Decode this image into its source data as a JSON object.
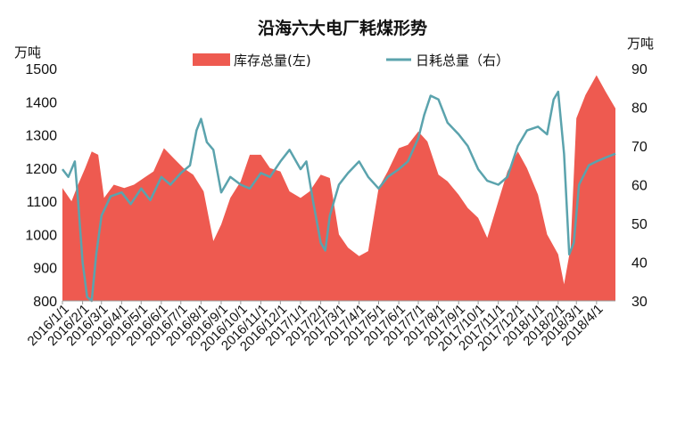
{
  "chart_data": {
    "type": "area+line",
    "title": "沿海六大电厂耗煤形势",
    "y_left_unit": "万吨",
    "y_right_unit": "万吨",
    "y_left_ticks": [
      "800",
      "900",
      "1000",
      "1100",
      "1200",
      "1300",
      "1400",
      "1500"
    ],
    "y_right_ticks": [
      "30",
      "40",
      "50",
      "60",
      "70",
      "80",
      "90"
    ],
    "ylim_left": [
      800,
      1500
    ],
    "ylim_right": [
      30,
      90
    ],
    "x_start": "2016/1/1",
    "x_end": "2018/4/30",
    "x_ticks": [
      "2016/1/1",
      "2016/2/1",
      "2016/3/1",
      "2016/4/1",
      "2016/5/1",
      "2016/6/1",
      "2016/7/1",
      "2016/8/1",
      "2016/9/1",
      "2016/10/1",
      "2016/11/1",
      "2016/12/1",
      "2017/1/1",
      "2017/2/1",
      "2017/3/1",
      "2017/4/1",
      "2017/5/1",
      "2017/6/1",
      "2017/7/1",
      "2017/8/1",
      "2017/9/1",
      "2017/10/1",
      "2017/11/1",
      "2017/12/1",
      "2018/1/1",
      "2018/2/1",
      "2018/3/1",
      "2018/4/1"
    ],
    "legend_position": "top",
    "colors": {
      "inventory": "#ee5a50",
      "daily": "#5ba3ad"
    },
    "series": [
      {
        "name": "库存总量(左)",
        "axis": "left",
        "style": "area",
        "points": [
          [
            "2016/1/1",
            1140
          ],
          [
            "2016/1/15",
            1100
          ],
          [
            "2016/1/25",
            1150
          ],
          [
            "2016/2/5",
            1200
          ],
          [
            "2016/2/15",
            1250
          ],
          [
            "2016/2/25",
            1240
          ],
          [
            "2016/3/5",
            1110
          ],
          [
            "2016/3/20",
            1150
          ],
          [
            "2016/4/5",
            1140
          ],
          [
            "2016/4/20",
            1150
          ],
          [
            "2016/5/5",
            1170
          ],
          [
            "2016/5/20",
            1190
          ],
          [
            "2016/6/5",
            1260
          ],
          [
            "2016/6/20",
            1230
          ],
          [
            "2016/7/5",
            1200
          ],
          [
            "2016/7/20",
            1180
          ],
          [
            "2016/8/5",
            1130
          ],
          [
            "2016/8/20",
            980
          ],
          [
            "2016/9/1",
            1030
          ],
          [
            "2016/9/15",
            1110
          ],
          [
            "2016/10/1",
            1160
          ],
          [
            "2016/10/15",
            1240
          ],
          [
            "2016/11/1",
            1240
          ],
          [
            "2016/11/15",
            1200
          ],
          [
            "2016/12/1",
            1190
          ],
          [
            "2016/12/15",
            1130
          ],
          [
            "2017/1/1",
            1110
          ],
          [
            "2017/1/15",
            1130
          ],
          [
            "2017/2/1",
            1180
          ],
          [
            "2017/2/15",
            1170
          ],
          [
            "2017/3/1",
            1000
          ],
          [
            "2017/3/15",
            960
          ],
          [
            "2017/4/1",
            935
          ],
          [
            "2017/4/15",
            950
          ],
          [
            "2017/5/1",
            1140
          ],
          [
            "2017/5/15",
            1190
          ],
          [
            "2017/6/1",
            1260
          ],
          [
            "2017/6/15",
            1270
          ],
          [
            "2017/7/1",
            1310
          ],
          [
            "2017/7/15",
            1280
          ],
          [
            "2017/8/1",
            1180
          ],
          [
            "2017/8/15",
            1160
          ],
          [
            "2017/9/1",
            1120
          ],
          [
            "2017/9/15",
            1080
          ],
          [
            "2017/10/1",
            1050
          ],
          [
            "2017/10/15",
            990
          ],
          [
            "2017/11/1",
            1100
          ],
          [
            "2017/11/15",
            1190
          ],
          [
            "2017/12/1",
            1250
          ],
          [
            "2017/12/15",
            1200
          ],
          [
            "2018/1/1",
            1120
          ],
          [
            "2018/1/15",
            1000
          ],
          [
            "2018/2/1",
            940
          ],
          [
            "2018/2/10",
            850
          ],
          [
            "2018/2/20",
            960
          ],
          [
            "2018/3/1",
            1350
          ],
          [
            "2018/3/15",
            1420
          ],
          [
            "2018/4/1",
            1480
          ],
          [
            "2018/4/15",
            1430
          ],
          [
            "2018/4/30",
            1380
          ]
        ]
      },
      {
        "name": "日耗总量（右）",
        "axis": "right",
        "style": "line",
        "points": [
          [
            "2016/1/1",
            64
          ],
          [
            "2016/1/10",
            62
          ],
          [
            "2016/1/20",
            66
          ],
          [
            "2016/1/25",
            56
          ],
          [
            "2016/2/1",
            40
          ],
          [
            "2016/2/8",
            31
          ],
          [
            "2016/2/15",
            30
          ],
          [
            "2016/2/22",
            42
          ],
          [
            "2016/3/1",
            52
          ],
          [
            "2016/3/15",
            57
          ],
          [
            "2016/4/1",
            58
          ],
          [
            "2016/4/15",
            55
          ],
          [
            "2016/5/1",
            59
          ],
          [
            "2016/5/15",
            56
          ],
          [
            "2016/6/1",
            62
          ],
          [
            "2016/6/15",
            60
          ],
          [
            "2016/7/1",
            63
          ],
          [
            "2016/7/15",
            65
          ],
          [
            "2016/7/25",
            74
          ],
          [
            "2016/8/1",
            77
          ],
          [
            "2016/8/10",
            71
          ],
          [
            "2016/8/20",
            69
          ],
          [
            "2016/9/1",
            58
          ],
          [
            "2016/9/15",
            62
          ],
          [
            "2016/10/1",
            60
          ],
          [
            "2016/10/15",
            59
          ],
          [
            "2016/11/1",
            63
          ],
          [
            "2016/11/15",
            62
          ],
          [
            "2016/12/1",
            66
          ],
          [
            "2016/12/15",
            69
          ],
          [
            "2017/1/1",
            64
          ],
          [
            "2017/1/10",
            66
          ],
          [
            "2017/1/20",
            56
          ],
          [
            "2017/2/1",
            45
          ],
          [
            "2017/2/8",
            43
          ],
          [
            "2017/2/15",
            52
          ],
          [
            "2017/3/1",
            60
          ],
          [
            "2017/3/15",
            63
          ],
          [
            "2017/4/1",
            66
          ],
          [
            "2017/4/15",
            62
          ],
          [
            "2017/5/1",
            59
          ],
          [
            "2017/5/15",
            62
          ],
          [
            "2017/6/1",
            64
          ],
          [
            "2017/6/15",
            66
          ],
          [
            "2017/7/1",
            72
          ],
          [
            "2017/7/10",
            78
          ],
          [
            "2017/7/20",
            83
          ],
          [
            "2017/8/1",
            82
          ],
          [
            "2017/8/15",
            76
          ],
          [
            "2017/9/1",
            73
          ],
          [
            "2017/9/15",
            70
          ],
          [
            "2017/10/1",
            64
          ],
          [
            "2017/10/15",
            61
          ],
          [
            "2017/11/1",
            60
          ],
          [
            "2017/11/15",
            62
          ],
          [
            "2017/12/1",
            70
          ],
          [
            "2017/12/15",
            74
          ],
          [
            "2018/1/1",
            75
          ],
          [
            "2018/1/15",
            73
          ],
          [
            "2018/1/25",
            82
          ],
          [
            "2018/2/1",
            84
          ],
          [
            "2018/2/10",
            68
          ],
          [
            "2018/2/18",
            42
          ],
          [
            "2018/2/25",
            45
          ],
          [
            "2018/3/5",
            60
          ],
          [
            "2018/3/20",
            65
          ],
          [
            "2018/4/1",
            66
          ],
          [
            "2018/4/15",
            67
          ],
          [
            "2018/4/30",
            68
          ]
        ]
      }
    ]
  }
}
